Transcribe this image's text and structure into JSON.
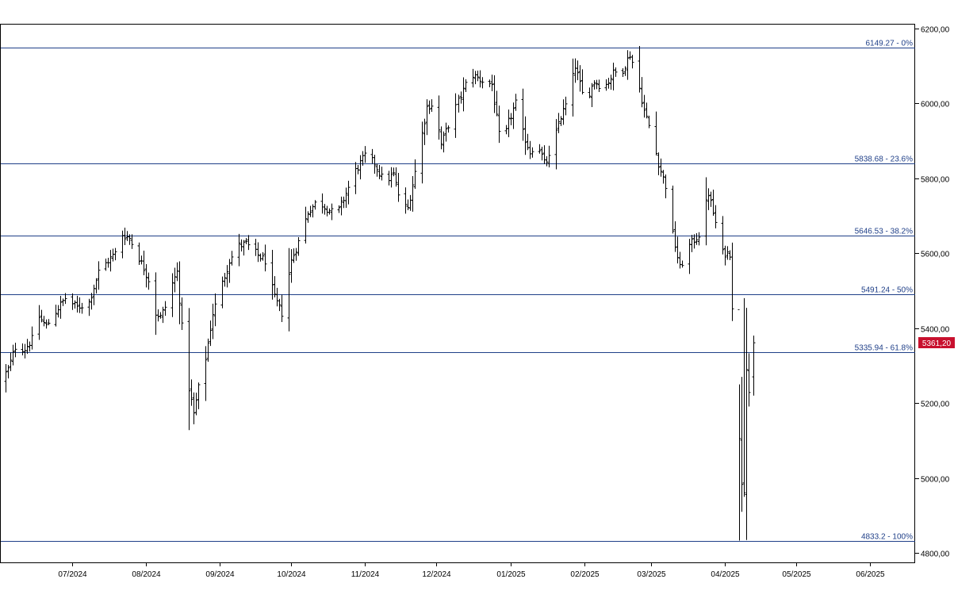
{
  "chart_data": {
    "type": "ohlc",
    "title": "",
    "xlabel": "",
    "ylabel": "",
    "ylim": [
      4775,
      6210
    ],
    "y_ticks": [
      "6200,00",
      "6000,00",
      "5800,00",
      "5600,00",
      "5400,00",
      "5200,00",
      "5000,00",
      "4800,00"
    ],
    "y_tick_values": [
      6200,
      6000,
      5800,
      5600,
      5400,
      5200,
      5000,
      4800
    ],
    "x_ticks": [
      "07/2024",
      "08/2024",
      "09/2024",
      "10/2024",
      "11/2024",
      "12/2024",
      "01/2025",
      "02/2025",
      "03/2025",
      "04/2025",
      "05/2025",
      "06/2025"
    ],
    "x_start": "2024-06-01",
    "x_end": "2025-06-20",
    "grid": false,
    "bar_color": "#000000",
    "fib_color": "#1f3f88",
    "last_price_color": "#c8102e",
    "fib_levels": [
      {
        "value": 6149.27,
        "label": "6149.27 - 0%"
      },
      {
        "value": 5838.68,
        "label": "5838.68 - 23.6%"
      },
      {
        "value": 5646.53,
        "label": "5646.53 - 38.2%"
      },
      {
        "value": 5491.24,
        "label": "5491.24 - 50%"
      },
      {
        "value": 5335.94,
        "label": "5335.94 - 61.8%"
      },
      {
        "value": 4833.2,
        "label": "4833.2 - 100%"
      }
    ],
    "last_price": {
      "value": 5361.2,
      "label": "5361,20"
    },
    "anchors": [
      [
        "2024-06-01",
        5260
      ],
      [
        "2024-06-04",
        5290
      ],
      [
        "2024-06-07",
        5350
      ],
      [
        "2024-06-11",
        5345
      ],
      [
        "2024-06-14",
        5370
      ],
      [
        "2024-06-17",
        5430
      ],
      [
        "2024-06-20",
        5405
      ],
      [
        "2024-06-24",
        5445
      ],
      [
        "2024-06-28",
        5480
      ],
      [
        "2024-07-03",
        5455
      ],
      [
        "2024-07-08",
        5470
      ],
      [
        "2024-07-12",
        5550
      ],
      [
        "2024-07-16",
        5580
      ],
      [
        "2024-07-19",
        5600
      ],
      [
        "2024-07-22",
        5650
      ],
      [
        "2024-07-25",
        5640
      ],
      [
        "2024-07-28",
        5600
      ],
      [
        "2024-07-31",
        5560
      ],
      [
        "2024-08-02",
        5530
      ],
      [
        "2024-08-05",
        5440
      ],
      [
        "2024-08-07",
        5430
      ],
      [
        "2024-08-10",
        5470
      ],
      [
        "2024-08-12",
        5520
      ],
      [
        "2024-08-14",
        5550
      ],
      [
        "2024-08-17",
        5330
      ],
      [
        "2024-08-19",
        5240
      ],
      [
        "2024-08-21",
        5170
      ],
      [
        "2024-08-23",
        5240
      ],
      [
        "2024-08-26",
        5320
      ],
      [
        "2024-08-29",
        5440
      ],
      [
        "2024-09-02",
        5520
      ],
      [
        "2024-09-05",
        5580
      ],
      [
        "2024-09-09",
        5620
      ],
      [
        "2024-09-12",
        5625
      ],
      [
        "2024-09-16",
        5600
      ],
      [
        "2024-09-20",
        5580
      ],
      [
        "2024-09-24",
        5480
      ],
      [
        "2024-09-27",
        5440
      ],
      [
        "2024-10-01",
        5580
      ],
      [
        "2024-10-04",
        5630
      ],
      [
        "2024-10-08",
        5710
      ],
      [
        "2024-10-12",
        5740
      ],
      [
        "2024-10-16",
        5720
      ],
      [
        "2024-10-20",
        5700
      ],
      [
        "2024-10-24",
        5760
      ],
      [
        "2024-10-28",
        5820
      ],
      [
        "2024-11-01",
        5860
      ],
      [
        "2024-11-05",
        5840
      ],
      [
        "2024-11-09",
        5790
      ],
      [
        "2024-11-13",
        5810
      ],
      [
        "2024-11-16",
        5730
      ],
      [
        "2024-11-19",
        5720
      ],
      [
        "2024-11-23",
        5850
      ],
      [
        "2024-11-27",
        5990
      ],
      [
        "2024-11-30",
        6000
      ],
      [
        "2024-12-03",
        5890
      ],
      [
        "2024-12-07",
        5960
      ],
      [
        "2024-12-11",
        6020
      ],
      [
        "2024-12-15",
        6080
      ],
      [
        "2024-12-20",
        6060
      ],
      [
        "2024-12-24",
        6050
      ],
      [
        "2024-12-28",
        5870
      ],
      [
        "2024-12-31",
        5950
      ],
      [
        "2025-01-03",
        6000
      ],
      [
        "2025-01-06",
        5920
      ],
      [
        "2025-01-09",
        5870
      ],
      [
        "2025-01-12",
        5900
      ],
      [
        "2025-01-15",
        5840
      ],
      [
        "2025-01-18",
        5860
      ],
      [
        "2025-01-21",
        5950
      ],
      [
        "2025-01-25",
        6010
      ],
      [
        "2025-01-28",
        6100
      ],
      [
        "2025-02-01",
        6000
      ],
      [
        "2025-02-05",
        6060
      ],
      [
        "2025-02-09",
        6040
      ],
      [
        "2025-02-13",
        6080
      ],
      [
        "2025-02-17",
        6090
      ],
      [
        "2025-02-20",
        6130
      ],
      [
        "2025-02-23",
        6070
      ],
      [
        "2025-02-26",
        5980
      ],
      [
        "2025-03-01",
        5920
      ],
      [
        "2025-03-04",
        5840
      ],
      [
        "2025-03-07",
        5780
      ],
      [
        "2025-03-10",
        5650
      ],
      [
        "2025-03-13",
        5560
      ],
      [
        "2025-03-17",
        5620
      ],
      [
        "2025-03-21",
        5650
      ],
      [
        "2025-03-25",
        5760
      ],
      [
        "2025-03-28",
        5680
      ],
      [
        "2025-03-31",
        5600
      ],
      [
        "2025-04-03",
        5600
      ],
      [
        "2025-04-04",
        5460
      ],
      [
        "2025-04-05",
        5420
      ],
      [
        "2025-04-07",
        5100
      ],
      [
        "2025-04-08",
        4990
      ],
      [
        "2025-04-09",
        4970
      ],
      [
        "2025-04-10",
        5300
      ],
      [
        "2025-04-11",
        5230
      ],
      [
        "2025-04-12",
        5290
      ],
      [
        "2025-04-13",
        5361
      ]
    ]
  }
}
